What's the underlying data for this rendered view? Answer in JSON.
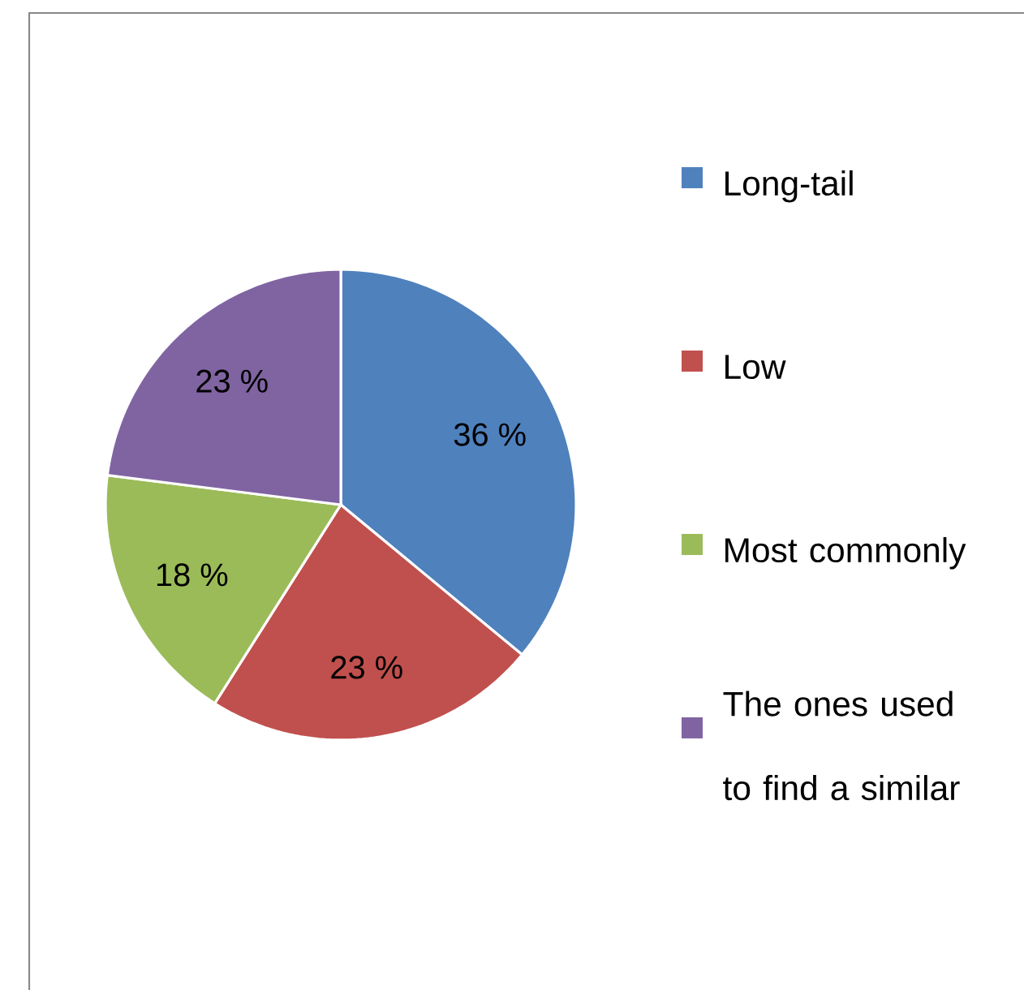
{
  "chart_data": {
    "type": "pie",
    "categories": [
      "Long-tail",
      "Low",
      "Most commonly",
      "The ones used to find a similar"
    ],
    "values": [
      36,
      23,
      18,
      23
    ],
    "colors": [
      "#4f81bd",
      "#c0504d",
      "#9bbb59",
      "#8064a2"
    ],
    "value_labels": [
      "36 %",
      "23 %",
      "18 %",
      "23 %"
    ],
    "legend": "right"
  }
}
